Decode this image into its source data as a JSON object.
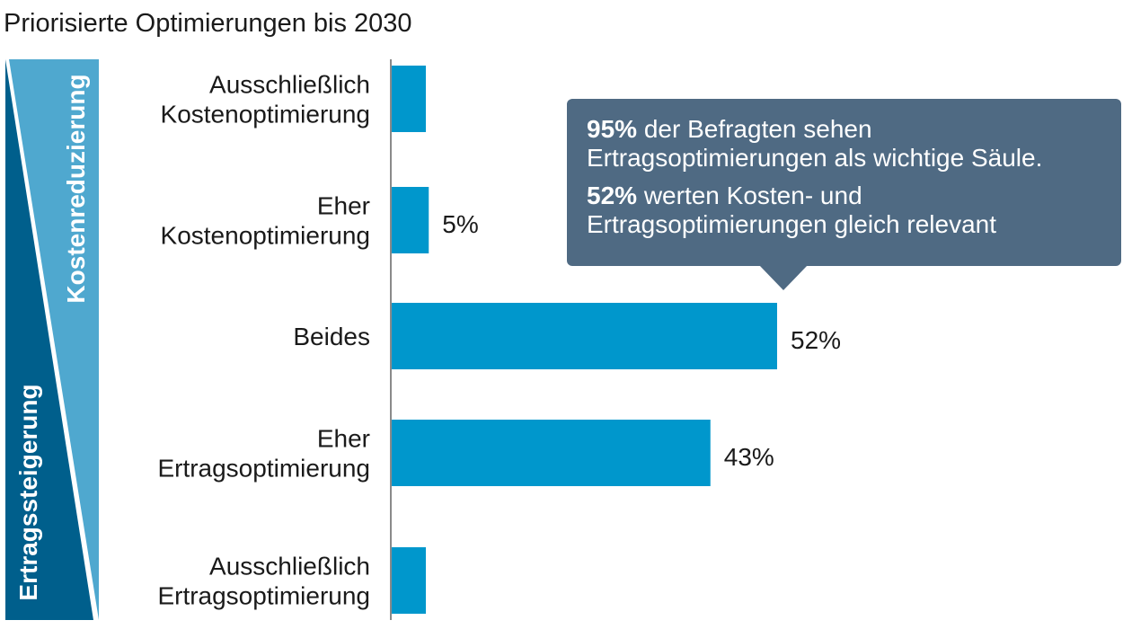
{
  "chart_data": {
    "type": "bar",
    "orientation": "horizontal",
    "title": "Priorisierte Optimierungen bis 2030",
    "categories": [
      [
        "Ausschließlich",
        "Kostenoptimierung"
      ],
      [
        "Eher",
        "Kostenoptimierung"
      ],
      [
        "Beides"
      ],
      [
        "Eher",
        "Ertragsoptimierung"
      ],
      [
        "Ausschließlich",
        "Ertragsoptimierung"
      ]
    ],
    "values": [
      0,
      5,
      52,
      43,
      0
    ],
    "value_labels": [
      "",
      "5%",
      "52%",
      "43%",
      ""
    ],
    "xlim": [
      0,
      100
    ],
    "bar_color": "#0097cc",
    "side_axis": {
      "top_label": "Kostenreduzierung",
      "bottom_label": "Ertragssteigerung",
      "top_color": "#4fa8cf",
      "bottom_color": "#005f8c"
    }
  },
  "callout": {
    "line1_bold": "95%",
    "line1_rest": " der Befragten sehen",
    "line2": "Ertragsoptimierungen als wichtige Säule.",
    "line3_bold": "52%",
    "line3_rest": " werten Kosten- und",
    "line4": "Ertragsoptimierungen gleich relevant",
    "color": "#4f6a83"
  }
}
